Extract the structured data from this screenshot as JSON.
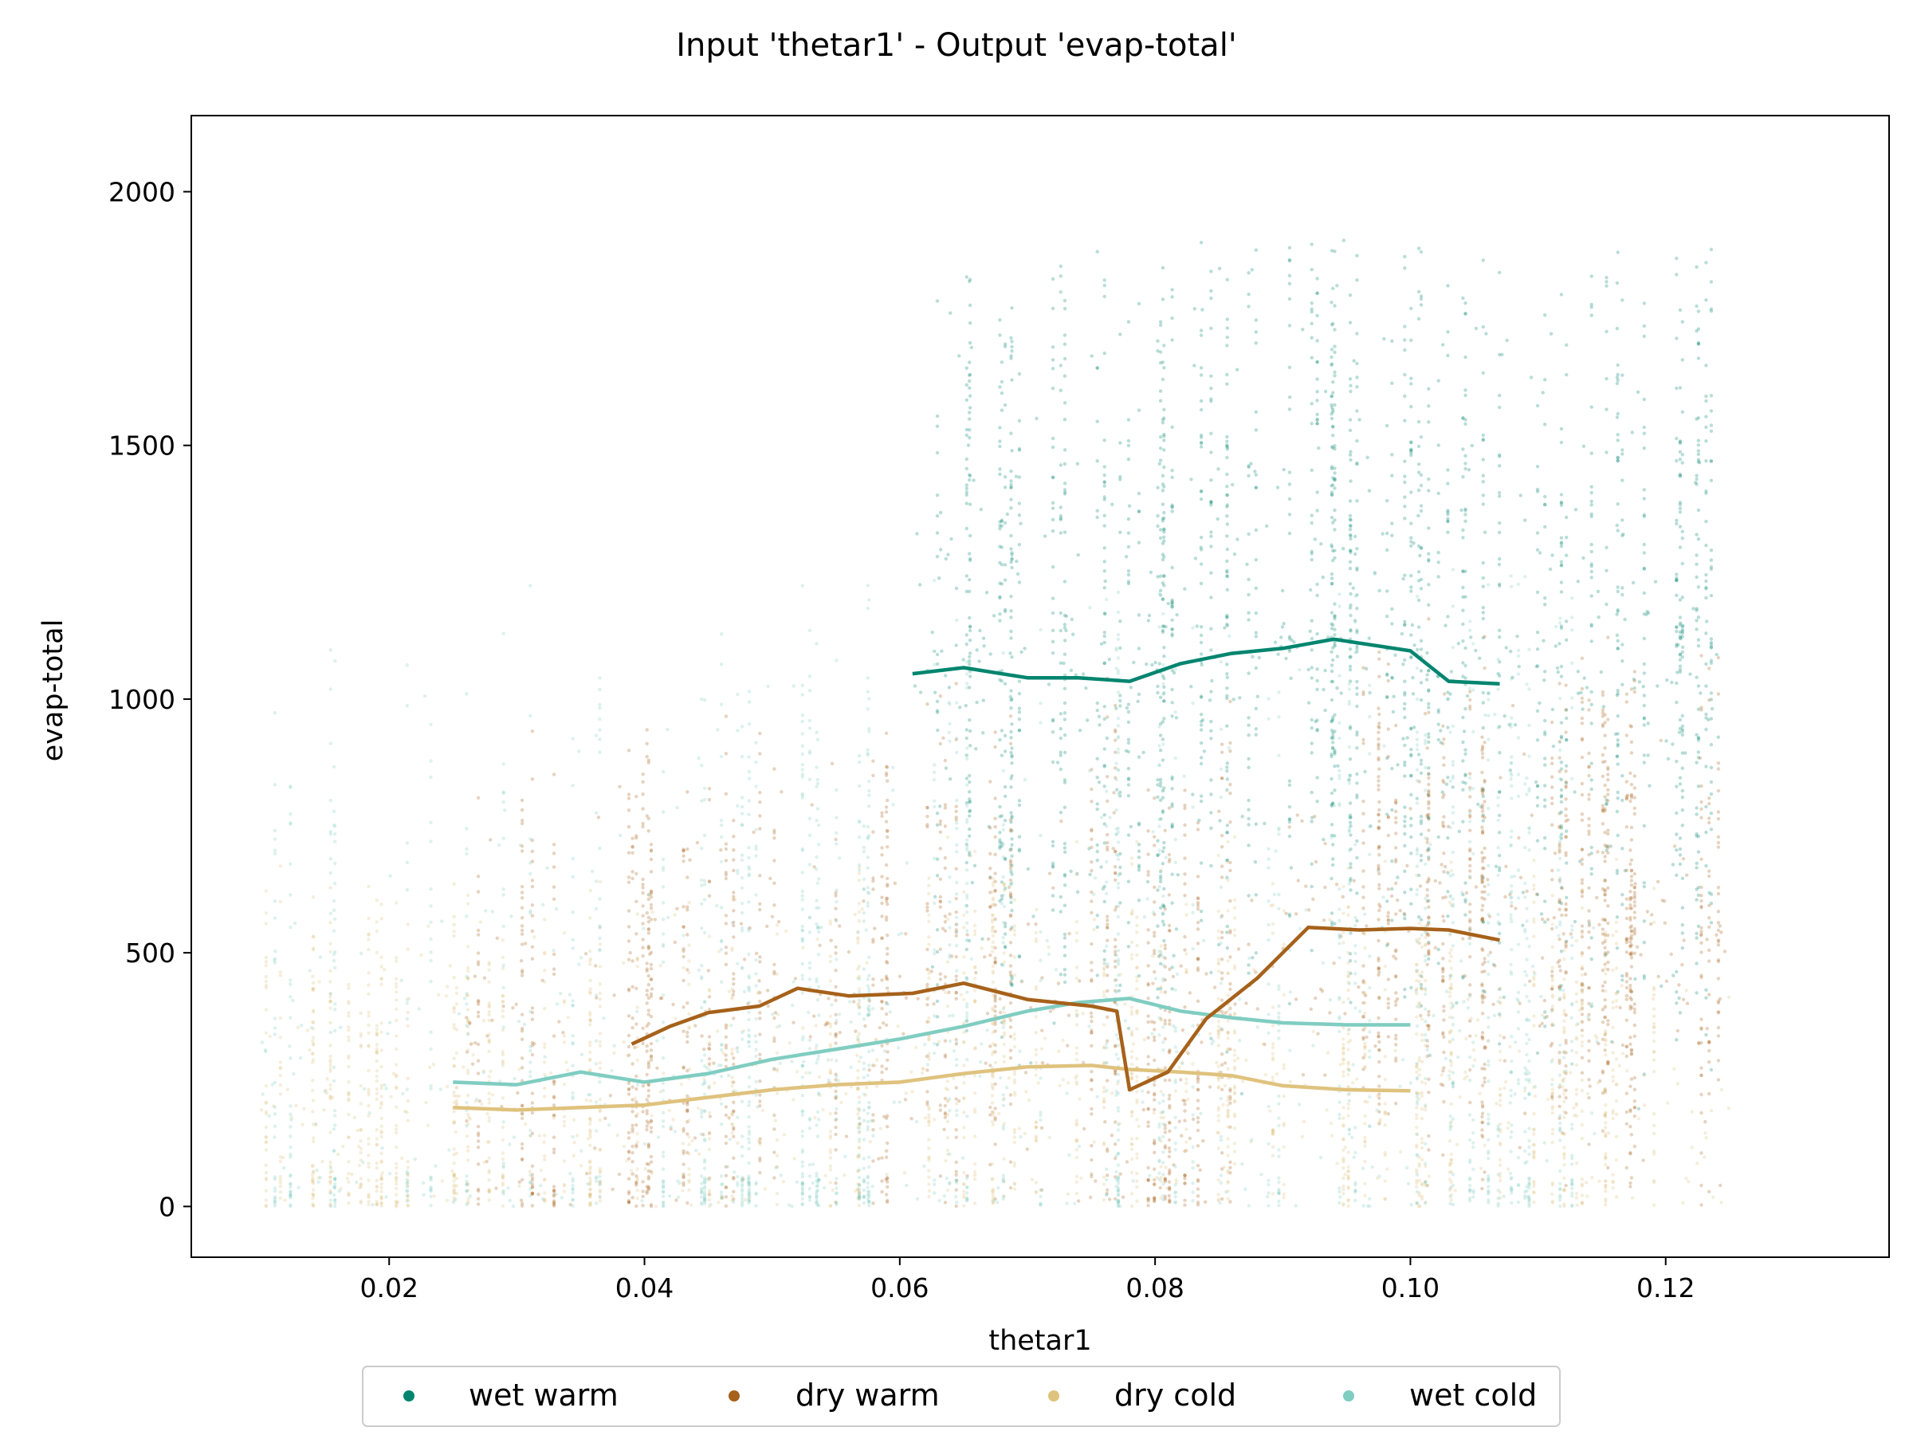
{
  "chart_data": {
    "type": "scatter",
    "title": "Input 'thetar1' - Output 'evap-total'",
    "xlabel": "thetar1",
    "ylabel": "evap-total",
    "xlim": [
      0.0045,
      0.1375
    ],
    "ylim": [
      -100,
      2150
    ],
    "x_ticks": [
      0.02,
      0.04,
      0.06,
      0.08,
      0.1,
      0.12
    ],
    "x_tick_labels": [
      "0.02",
      "0.04",
      "0.06",
      "0.08",
      "0.10",
      "0.12"
    ],
    "y_ticks": [
      0,
      500,
      1000,
      1500,
      2000
    ],
    "y_tick_labels": [
      "0",
      "500",
      "1000",
      "1500",
      "2000"
    ],
    "grid": false,
    "legend_position": "bottom-center",
    "series": [
      {
        "name": "wet warm",
        "color": "#01856f",
        "trend": [
          [
            0.061,
            1050
          ],
          [
            0.065,
            1062
          ],
          [
            0.07,
            1042
          ],
          [
            0.074,
            1042
          ],
          [
            0.078,
            1035
          ],
          [
            0.082,
            1070
          ],
          [
            0.086,
            1090
          ],
          [
            0.09,
            1100
          ],
          [
            0.094,
            1118
          ],
          [
            0.1,
            1095
          ],
          [
            0.103,
            1035
          ],
          [
            0.107,
            1030
          ]
        ],
        "scatter_range": [
          0.061,
          0.125
        ],
        "scatter_spread": [
          100,
          1900
        ]
      },
      {
        "name": "dry warm",
        "color": "#a6611a",
        "trend": [
          [
            0.039,
            320
          ],
          [
            0.042,
            355
          ],
          [
            0.045,
            382
          ],
          [
            0.049,
            395
          ],
          [
            0.052,
            430
          ],
          [
            0.056,
            415
          ],
          [
            0.061,
            420
          ],
          [
            0.065,
            440
          ],
          [
            0.07,
            408
          ],
          [
            0.075,
            395
          ],
          [
            0.077,
            385
          ],
          [
            0.078,
            230
          ],
          [
            0.081,
            265
          ],
          [
            0.084,
            370
          ],
          [
            0.088,
            450
          ],
          [
            0.092,
            550
          ],
          [
            0.096,
            545
          ],
          [
            0.1,
            548
          ],
          [
            0.103,
            545
          ],
          [
            0.107,
            525
          ]
        ],
        "scatter_range": [
          0.026,
          0.125
        ],
        "scatter_spread": [
          0,
          1200
        ]
      },
      {
        "name": "dry cold",
        "color": "#dfc27d",
        "trend": [
          [
            0.025,
            195
          ],
          [
            0.03,
            190
          ],
          [
            0.035,
            195
          ],
          [
            0.04,
            200
          ],
          [
            0.045,
            215
          ],
          [
            0.05,
            230
          ],
          [
            0.055,
            240
          ],
          [
            0.06,
            245
          ],
          [
            0.065,
            262
          ],
          [
            0.07,
            275
          ],
          [
            0.075,
            278
          ],
          [
            0.078,
            270
          ],
          [
            0.082,
            265
          ],
          [
            0.086,
            258
          ],
          [
            0.09,
            238
          ],
          [
            0.095,
            230
          ],
          [
            0.1,
            228
          ]
        ],
        "scatter_range": [
          0.01,
          0.125
        ],
        "scatter_spread": [
          0,
          900
        ]
      },
      {
        "name": "wet cold",
        "color": "#80cdc1",
        "trend": [
          [
            0.025,
            245
          ],
          [
            0.03,
            240
          ],
          [
            0.035,
            265
          ],
          [
            0.04,
            245
          ],
          [
            0.045,
            262
          ],
          [
            0.05,
            290
          ],
          [
            0.055,
            310
          ],
          [
            0.06,
            330
          ],
          [
            0.065,
            355
          ],
          [
            0.07,
            385
          ],
          [
            0.074,
            402
          ],
          [
            0.078,
            410
          ],
          [
            0.082,
            385
          ],
          [
            0.086,
            372
          ],
          [
            0.09,
            362
          ],
          [
            0.095,
            358
          ],
          [
            0.1,
            358
          ]
        ],
        "scatter_range": [
          0.01,
          0.115
        ],
        "scatter_spread": [
          0,
          1800
        ]
      }
    ]
  }
}
